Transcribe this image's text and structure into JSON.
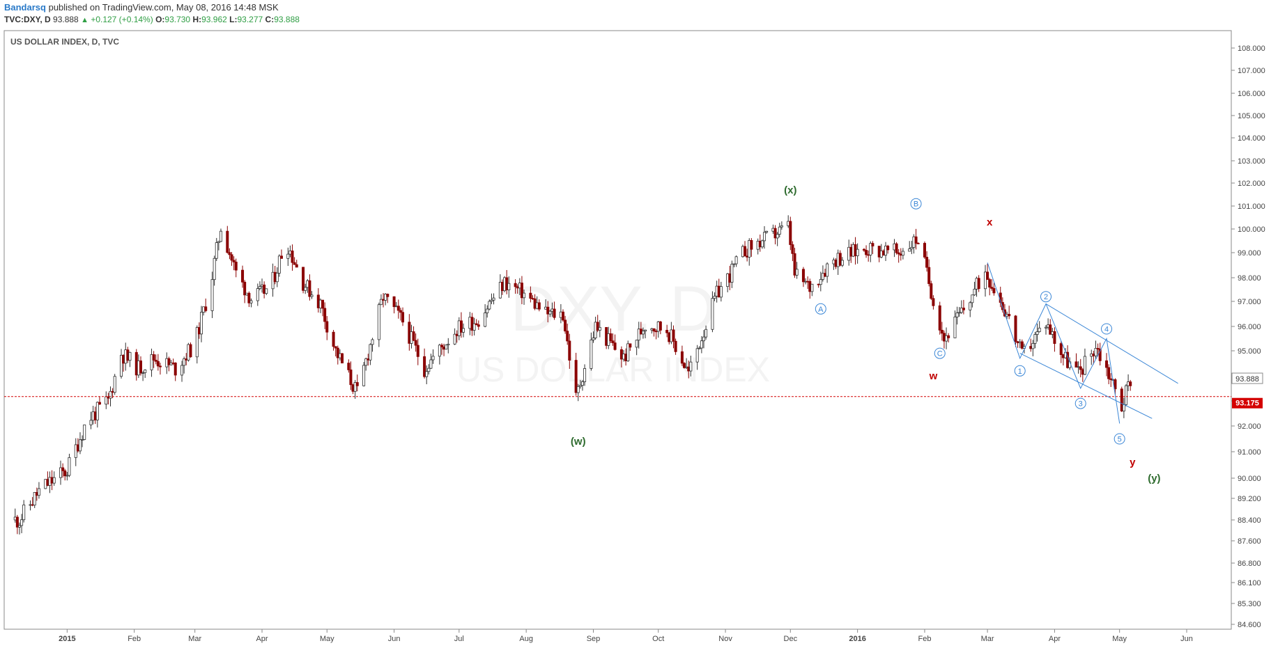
{
  "header": {
    "author": "Bandarsq",
    "published_text": "published on TradingView.com, May 08, 2016 14:48 MSK",
    "symbol": "TVC:DXY, D",
    "last": "93.888",
    "change": "+0.127 (+0.14%)",
    "open_label": "O:",
    "open": "93.730",
    "high_label": "H:",
    "high": "93.962",
    "low_label": "L:",
    "low": "93.277",
    "close_label": "C:",
    "close": "93.888"
  },
  "chart_data": {
    "type": "candlestick",
    "title": "US DOLLAR INDEX, D, TVC",
    "watermark_symbol": "DXY, D",
    "watermark_name": "US DOLLAR INDEX",
    "x_ticks": [
      "2015",
      "Feb",
      "Mar",
      "Apr",
      "May",
      "Jun",
      "Jul",
      "Aug",
      "Sep",
      "Oct",
      "Nov",
      "Dec",
      "2016",
      "Feb",
      "Mar",
      "Apr",
      "May",
      "Jun"
    ],
    "y_ticks": [
      "108.000",
      "107.000",
      "106.000",
      "105.000",
      "104.000",
      "103.000",
      "102.000",
      "101.000",
      "100.000",
      "99.000",
      "98.000",
      "97.000",
      "96.000",
      "95.000",
      "94.000",
      "93.000",
      "92.000",
      "91.000",
      "90.000",
      "89.200",
      "88.400",
      "87.600",
      "86.800",
      "86.100",
      "85.300",
      "84.600"
    ],
    "last_price_label": "93.888",
    "horizontal_line_label": "93.175",
    "horizontal_line_value": 93.175,
    "colors": {
      "up": "#2e2e2e",
      "down": "#8b0000",
      "wave_green": "#2e6b2e",
      "wave_red": "#c00000",
      "line_blue": "#3a86d6"
    },
    "price_path": [
      [
        "2014-12-10",
        88.4
      ],
      [
        "2014-12-20",
        89.6
      ],
      [
        "2015-01-01",
        90.3
      ],
      [
        "2015-01-10",
        92.2
      ],
      [
        "2015-01-20",
        93.0
      ],
      [
        "2015-01-26",
        94.9
      ],
      [
        "2015-02-03",
        94.3
      ],
      [
        "2015-02-10",
        94.7
      ],
      [
        "2015-02-20",
        94.3
      ],
      [
        "2015-03-01",
        95.3
      ],
      [
        "2015-03-08",
        97.6
      ],
      [
        "2015-03-13",
        100.1
      ],
      [
        "2015-03-20",
        98.2
      ],
      [
        "2015-03-27",
        97.1
      ],
      [
        "2015-04-05",
        97.6
      ],
      [
        "2015-04-12",
        99.5
      ],
      [
        "2015-04-20",
        97.8
      ],
      [
        "2015-04-28",
        96.9
      ],
      [
        "2015-05-05",
        95.0
      ],
      [
        "2015-05-15",
        93.3
      ],
      [
        "2015-05-27",
        97.2
      ],
      [
        "2015-06-05",
        96.2
      ],
      [
        "2015-06-15",
        94.3
      ],
      [
        "2015-06-30",
        95.9
      ],
      [
        "2015-07-10",
        96.3
      ],
      [
        "2015-07-22",
        97.8
      ],
      [
        "2015-07-30",
        97.4
      ],
      [
        "2015-08-10",
        96.5
      ],
      [
        "2015-08-18",
        96.5
      ],
      [
        "2015-08-24",
        93.1
      ],
      [
        "2015-09-02",
        96.0
      ],
      [
        "2015-09-15",
        94.7
      ],
      [
        "2015-09-25",
        96.1
      ],
      [
        "2015-10-05",
        95.9
      ],
      [
        "2015-10-15",
        94.1
      ],
      [
        "2015-10-28",
        97.3
      ],
      [
        "2015-11-10",
        99.1
      ],
      [
        "2015-11-30",
        100.1
      ],
      [
        "2015-12-03",
        98.1
      ],
      [
        "2015-12-10",
        97.6
      ],
      [
        "2015-12-20",
        98.7
      ],
      [
        "2016-01-05",
        99.2
      ],
      [
        "2016-01-20",
        99.0
      ],
      [
        "2016-01-29",
        99.6
      ],
      [
        "2016-02-05",
        97.1
      ],
      [
        "2016-02-10",
        95.5
      ],
      [
        "2016-02-20",
        96.8
      ],
      [
        "2016-02-29",
        98.3
      ],
      [
        "2016-03-10",
        96.5
      ],
      [
        "2016-03-17",
        94.8
      ],
      [
        "2016-03-28",
        96.2
      ],
      [
        "2016-04-05",
        94.8
      ],
      [
        "2016-04-12",
        94.1
      ],
      [
        "2016-04-20",
        95.2
      ],
      [
        "2016-04-26",
        94.1
      ],
      [
        "2016-05-02",
        92.8
      ],
      [
        "2016-05-06",
        93.9
      ]
    ],
    "wave_labels": [
      {
        "text": "(x)",
        "date": "2015-12-01",
        "price": 101.7,
        "style": "wave_green"
      },
      {
        "text": "(w)",
        "date": "2015-08-25",
        "price": 91.4,
        "style": "wave_green"
      },
      {
        "text": "(y)",
        "date": "2016-05-17",
        "price": 90.0,
        "style": "wave_green"
      },
      {
        "text": "w",
        "date": "2016-02-05",
        "price": 94.0,
        "style": "wave_red"
      },
      {
        "text": "x",
        "date": "2016-03-02",
        "price": 100.3,
        "style": "wave_red"
      },
      {
        "text": "y",
        "date": "2016-05-07",
        "price": 90.6,
        "style": "wave_red"
      },
      {
        "text": "A",
        "date": "2015-12-15",
        "price": 96.7,
        "circled": true
      },
      {
        "text": "B",
        "date": "2016-01-28",
        "price": 101.1,
        "circled": true
      },
      {
        "text": "C",
        "date": "2016-02-08",
        "price": 94.9,
        "circled": true
      },
      {
        "text": "1",
        "date": "2016-03-16",
        "price": 94.2,
        "circled": true
      },
      {
        "text": "2",
        "date": "2016-03-28",
        "price": 97.2,
        "circled": true
      },
      {
        "text": "3",
        "date": "2016-04-13",
        "price": 92.9,
        "circled": true
      },
      {
        "text": "4",
        "date": "2016-04-25",
        "price": 95.9,
        "circled": true
      },
      {
        "text": "5",
        "date": "2016-05-01",
        "price": 91.5,
        "circled": true
      }
    ],
    "wave_path": [
      [
        "2016-03-01",
        98.6
      ],
      [
        "2016-03-16",
        94.7
      ],
      [
        "2016-03-28",
        96.9
      ],
      [
        "2016-04-13",
        93.5
      ],
      [
        "2016-04-25",
        95.5
      ],
      [
        "2016-05-01",
        92.1
      ]
    ],
    "channel_lines": [
      [
        [
          "2016-03-28",
          96.9
        ],
        [
          "2016-05-28",
          93.7
        ]
      ],
      [
        [
          "2016-03-16",
          94.9
        ],
        [
          "2016-05-16",
          92.3
        ]
      ]
    ]
  }
}
